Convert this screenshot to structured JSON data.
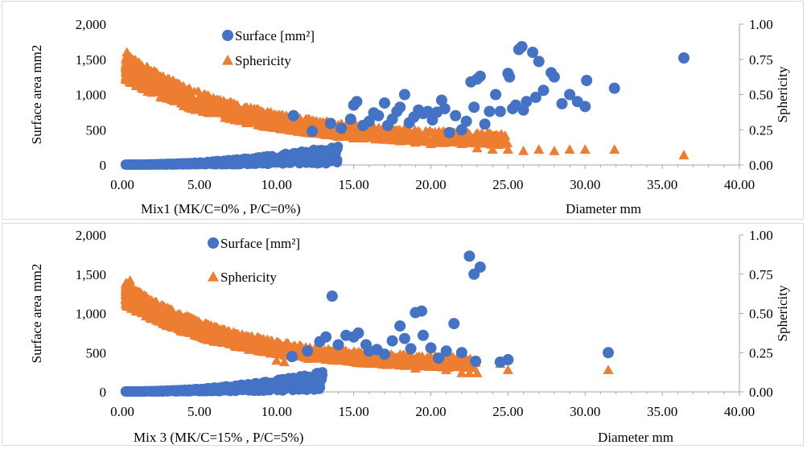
{
  "colors": {
    "surface": "#4472C4",
    "sphericity": "#ED7D31",
    "axis": "#a6a6a6"
  },
  "chart_data": [
    {
      "type": "scatter",
      "subtitle": "Mix1    (MK/C=0% , P/C=0%)",
      "xlabel": "Diameter  mm",
      "ylabel": "Surface area mm2",
      "y2label": "Sphericity",
      "xlim": [
        0,
        40
      ],
      "ylim": [
        0,
        2000
      ],
      "y2lim": [
        0,
        1
      ],
      "xticks": [
        "0.00",
        "5.00",
        "10.00",
        "15.00",
        "20.00",
        "25.00",
        "30.00",
        "35.00",
        "40.00"
      ],
      "yticks": [
        "0",
        "500",
        "1,000",
        "1,500",
        "2,000"
      ],
      "y2ticks": [
        "0.00",
        "0.25",
        "0.50",
        "0.75",
        "1.00"
      ],
      "legend_position": "top-left",
      "grid": false,
      "series": [
        {
          "name": "Surface [mm²]",
          "marker": "circle",
          "axis": "left",
          "points": [
            [
              11.1,
              700
            ],
            [
              12.3,
              480
            ],
            [
              13.5,
              590
            ],
            [
              14.2,
              520
            ],
            [
              14.8,
              650
            ],
            [
              15.0,
              850
            ],
            [
              15.2,
              900
            ],
            [
              15.6,
              560
            ],
            [
              16.0,
              620
            ],
            [
              16.3,
              740
            ],
            [
              16.6,
              700
            ],
            [
              17.0,
              880
            ],
            [
              17.2,
              560
            ],
            [
              17.5,
              650
            ],
            [
              17.8,
              760
            ],
            [
              18.0,
              820
            ],
            [
              18.3,
              1000
            ],
            [
              18.6,
              600
            ],
            [
              18.9,
              680
            ],
            [
              19.2,
              780
            ],
            [
              19.5,
              730
            ],
            [
              19.8,
              760
            ],
            [
              20.1,
              640
            ],
            [
              20.4,
              750
            ],
            [
              20.7,
              920
            ],
            [
              20.9,
              800
            ],
            [
              21.2,
              460
            ],
            [
              21.6,
              700
            ],
            [
              22.0,
              500
            ],
            [
              22.3,
              620
            ],
            [
              22.6,
              1180
            ],
            [
              22.8,
              820
            ],
            [
              23.0,
              1220
            ],
            [
              23.2,
              1260
            ],
            [
              23.5,
              580
            ],
            [
              23.8,
              760
            ],
            [
              24.2,
              1000
            ],
            [
              24.5,
              760
            ],
            [
              25.0,
              1300
            ],
            [
              25.1,
              1250
            ],
            [
              25.3,
              800
            ],
            [
              25.5,
              850
            ],
            [
              25.7,
              1640
            ],
            [
              25.9,
              1680
            ],
            [
              26.0,
              780
            ],
            [
              26.2,
              900
            ],
            [
              26.6,
              1600
            ],
            [
              26.8,
              960
            ],
            [
              27.0,
              1470
            ],
            [
              27.3,
              1060
            ],
            [
              27.8,
              1310
            ],
            [
              28.0,
              1250
            ],
            [
              28.5,
              870
            ],
            [
              29.0,
              1000
            ],
            [
              29.5,
              900
            ],
            [
              30.0,
              830
            ],
            [
              30.1,
              1200
            ],
            [
              31.9,
              1090
            ],
            [
              36.4,
              1520
            ]
          ]
        },
        {
          "name": "Sphericity",
          "marker": "triangle",
          "axis": "right",
          "points": [
            [
              0.3,
              0.8
            ],
            [
              11.5,
              0.33
            ],
            [
              12.0,
              0.24
            ],
            [
              13.0,
              0.22
            ],
            [
              14.0,
              0.2
            ],
            [
              15.0,
              0.19
            ],
            [
              16.0,
              0.2
            ],
            [
              17.0,
              0.18
            ],
            [
              18.0,
              0.17
            ],
            [
              19.0,
              0.16
            ],
            [
              20.0,
              0.15
            ],
            [
              21.0,
              0.17
            ],
            [
              22.0,
              0.15
            ],
            [
              23.0,
              0.12
            ],
            [
              24.0,
              0.11
            ],
            [
              25.0,
              0.11
            ],
            [
              26.0,
              0.1
            ],
            [
              27.0,
              0.11
            ],
            [
              28.0,
              0.1
            ],
            [
              29.0,
              0.11
            ],
            [
              30.0,
              0.11
            ],
            [
              31.9,
              0.11
            ],
            [
              36.4,
              0.07
            ]
          ]
        }
      ],
      "dense_bands": {
        "surface": {
          "x": [
            0.2,
            14
          ],
          "y_low": [
            0,
            20
          ],
          "y_high": [
            10,
            280
          ]
        },
        "sphericity": {
          "x": [
            0.2,
            25
          ],
          "y_low": [
            0.6,
            0.12
          ],
          "y_high": [
            0.8,
            0.2
          ]
        }
      }
    },
    {
      "type": "scatter",
      "subtitle": "Mix 3 (MK/C=15% , P/C=5%)",
      "xlabel": "Diameter mm",
      "ylabel": "Surface area mm2",
      "y2label": "Sphericity",
      "xlim": [
        0,
        40
      ],
      "ylim": [
        0,
        2000
      ],
      "y2lim": [
        0,
        1
      ],
      "xticks": [
        "0.00",
        "5.00",
        "10.00",
        "15.00",
        "20.00",
        "25.00",
        "30.00",
        "35.00",
        "40.00"
      ],
      "yticks": [
        "0",
        "500",
        "1,000",
        "1,500",
        "2,000"
      ],
      "y2ticks": [
        "0.00",
        "0.25",
        "0.50",
        "0.75",
        "1.00"
      ],
      "legend_position": "top-left",
      "grid": false,
      "series": [
        {
          "name": "Surface [mm²]",
          "marker": "circle",
          "axis": "left",
          "points": [
            [
              11.0,
              450
            ],
            [
              12.0,
              520
            ],
            [
              12.8,
              640
            ],
            [
              13.2,
              700
            ],
            [
              13.6,
              1220
            ],
            [
              14.0,
              600
            ],
            [
              14.5,
              720
            ],
            [
              15.0,
              700
            ],
            [
              15.3,
              750
            ],
            [
              15.8,
              600
            ],
            [
              16.0,
              520
            ],
            [
              16.5,
              540
            ],
            [
              17.0,
              480
            ],
            [
              17.5,
              650
            ],
            [
              18.0,
              840
            ],
            [
              18.3,
              680
            ],
            [
              18.7,
              550
            ],
            [
              19.0,
              1010
            ],
            [
              19.4,
              1030
            ],
            [
              19.5,
              720
            ],
            [
              20.0,
              560
            ],
            [
              20.5,
              430
            ],
            [
              21.0,
              520
            ],
            [
              21.5,
              870
            ],
            [
              22.0,
              500
            ],
            [
              22.5,
              1730
            ],
            [
              22.8,
              1500
            ],
            [
              22.9,
              390
            ],
            [
              23.2,
              1590
            ],
            [
              24.5,
              380
            ],
            [
              25.0,
              410
            ],
            [
              31.5,
              500
            ]
          ]
        },
        {
          "name": "Sphericity",
          "marker": "triangle",
          "axis": "right",
          "points": [
            [
              0.5,
              0.71
            ],
            [
              10.0,
              0.2
            ],
            [
              10.5,
              0.19
            ],
            [
              11.0,
              0.27
            ],
            [
              12.0,
              0.22
            ],
            [
              13.0,
              0.23
            ],
            [
              14.0,
              0.2
            ],
            [
              15.0,
              0.19
            ],
            [
              16.0,
              0.18
            ],
            [
              17.0,
              0.2
            ],
            [
              18.0,
              0.17
            ],
            [
              19.0,
              0.15
            ],
            [
              20.0,
              0.16
            ],
            [
              21.0,
              0.14
            ],
            [
              22.0,
              0.12
            ],
            [
              22.5,
              0.12
            ],
            [
              23.0,
              0.12
            ],
            [
              24.5,
              0.18
            ],
            [
              25.0,
              0.14
            ],
            [
              31.5,
              0.14
            ]
          ]
        }
      ],
      "dense_bands": {
        "surface": {
          "x": [
            0.2,
            13
          ],
          "y_low": [
            0,
            20
          ],
          "y_high": [
            10,
            260
          ]
        },
        "sphericity": {
          "x": [
            0.2,
            23
          ],
          "y_low": [
            0.55,
            0.13
          ],
          "y_high": [
            0.7,
            0.2
          ]
        }
      }
    }
  ]
}
